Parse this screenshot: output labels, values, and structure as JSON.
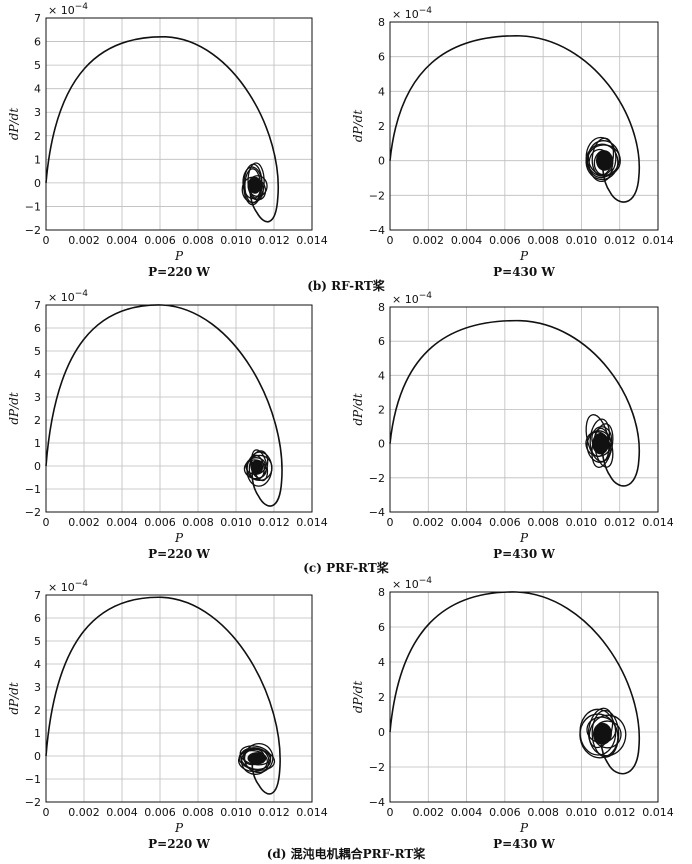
{
  "figure": {
    "group_captions": [
      "(b) RF-RT桨",
      "(c) PRF-RT桨",
      "(d) 混沌电机耦合PRF-RT桨"
    ]
  },
  "chart_data": [
    {
      "type": "line",
      "group": 0,
      "col": 0,
      "subtitle": "P=220 W",
      "xlabel": "P",
      "ylabel": "dP/dt",
      "y_multiplier": "× 10^-4",
      "xlim": [
        0,
        0.014
      ],
      "ylim": [
        -2,
        7
      ],
      "xticks": [
        "0",
        "0.002",
        "0.004",
        "0.006",
        "0.008",
        "0.010",
        "0.012",
        "0.014"
      ],
      "yticks": [
        "−2",
        "−1",
        "0",
        "1",
        "2",
        "3",
        "4",
        "5",
        "6",
        "7"
      ],
      "grid": true,
      "arc": {
        "peak_x": 0.0063,
        "peak_y": 6.2,
        "right_x": 0.0122,
        "bottom_x": 0.0117,
        "bottom_y": -1.8
      },
      "attractor": {
        "cx": 0.011,
        "cy": -0.1,
        "rx": 0.0006,
        "ry": 0.8
      }
    },
    {
      "type": "line",
      "group": 0,
      "col": 1,
      "subtitle": "P=430 W",
      "xlabel": "P",
      "ylabel": "dP/dt",
      "y_multiplier": "× 10^-4",
      "xlim": [
        0,
        0.014
      ],
      "ylim": [
        -4,
        8
      ],
      "xticks": [
        "0",
        "0.002",
        "0.004",
        "0.006",
        "0.008",
        "0.010",
        "0.012",
        "0.014"
      ],
      "yticks": [
        "−4",
        "−2",
        "0",
        "2",
        "4",
        "6",
        "8"
      ],
      "grid": true,
      "arc": {
        "peak_x": 0.0068,
        "peak_y": 7.2,
        "right_x": 0.013,
        "bottom_x": 0.0121,
        "bottom_y": -2.6
      },
      "attractor": {
        "cx": 0.0112,
        "cy": 0.0,
        "rx": 0.0008,
        "ry": 1.3
      }
    },
    {
      "type": "line",
      "group": 1,
      "col": 0,
      "subtitle": "P=220 W",
      "xlabel": "P",
      "ylabel": "dP/dt",
      "y_multiplier": "× 10^-4",
      "xlim": [
        0,
        0.014
      ],
      "ylim": [
        -2,
        7
      ],
      "xticks": [
        "0",
        "0.002",
        "0.004",
        "0.006",
        "0.008",
        "0.010",
        "0.012",
        "0.014"
      ],
      "yticks": [
        "−2",
        "−1",
        "0",
        "1",
        "2",
        "3",
        "4",
        "5",
        "6",
        "7"
      ],
      "grid": true,
      "arc": {
        "peak_x": 0.0061,
        "peak_y": 7.0,
        "right_x": 0.0124,
        "bottom_x": 0.0118,
        "bottom_y": -1.9
      },
      "attractor": {
        "cx": 0.0111,
        "cy": -0.05,
        "rx": 0.0006,
        "ry": 0.7
      }
    },
    {
      "type": "line",
      "group": 1,
      "col": 1,
      "subtitle": "P=430 W",
      "xlabel": "P",
      "ylabel": "dP/dt",
      "y_multiplier": "× 10^-4",
      "xlim": [
        0,
        0.014
      ],
      "ylim": [
        -4,
        8
      ],
      "xticks": [
        "0",
        "0.002",
        "0.004",
        "0.006",
        "0.008",
        "0.010",
        "0.012",
        "0.014"
      ],
      "yticks": [
        "−4",
        "−2",
        "0",
        "2",
        "4",
        "6",
        "8"
      ],
      "grid": true,
      "arc": {
        "peak_x": 0.0068,
        "peak_y": 7.2,
        "right_x": 0.013,
        "bottom_x": 0.0121,
        "bottom_y": -2.7
      },
      "attractor": {
        "cx": 0.011,
        "cy": 0.0,
        "rx": 0.0008,
        "ry": 1.4
      }
    },
    {
      "type": "line",
      "group": 2,
      "col": 0,
      "subtitle": "P=220 W",
      "xlabel": "P",
      "ylabel": "dP/dt",
      "y_multiplier": "× 10^-4",
      "xlim": [
        0,
        0.014
      ],
      "ylim": [
        -2,
        7
      ],
      "xticks": [
        "0",
        "0.002",
        "0.004",
        "0.006",
        "0.008",
        "0.010",
        "0.012",
        "0.014"
      ],
      "yticks": [
        "−2",
        "−1",
        "0",
        "1",
        "2",
        "3",
        "4",
        "5",
        "6",
        "7"
      ],
      "grid": true,
      "arc": {
        "peak_x": 0.0061,
        "peak_y": 6.9,
        "right_x": 0.0123,
        "bottom_x": 0.0118,
        "bottom_y": -1.8
      },
      "attractor": {
        "cx": 0.0111,
        "cy": -0.1,
        "rx": 0.0009,
        "ry": 0.6
      }
    },
    {
      "type": "line",
      "group": 2,
      "col": 1,
      "subtitle": "P=430 W",
      "xlabel": "P",
      "ylabel": "dP/dt",
      "y_multiplier": "× 10^-4",
      "xlim": [
        0,
        0.014
      ],
      "ylim": [
        -4,
        8
      ],
      "xticks": [
        "0",
        "0.002",
        "0.004",
        "0.006",
        "0.008",
        "0.010",
        "0.012",
        "0.014"
      ],
      "yticks": [
        "−4",
        "−2",
        "0",
        "2",
        "4",
        "6",
        "8"
      ],
      "grid": true,
      "arc": {
        "peak_x": 0.0066,
        "peak_y": 8.0,
        "right_x": 0.013,
        "bottom_x": 0.012,
        "bottom_y": -2.6
      },
      "attractor": {
        "cx": 0.0111,
        "cy": -0.1,
        "rx": 0.0009,
        "ry": 1.4
      }
    }
  ]
}
